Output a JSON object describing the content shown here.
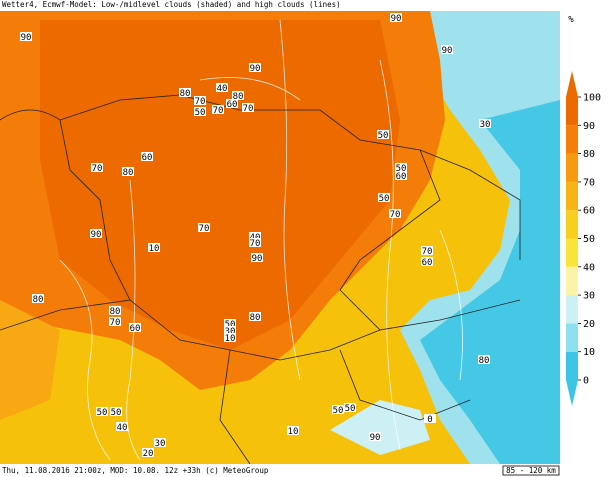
{
  "header": {
    "title": "Wetter4, Ecmwf-Model: Low-/midlevel clouds (shaded) and high clouds (lines)"
  },
  "footer": {
    "info": "Thu, 11.08.2016 21:00z, MOD: 10.08. 12z +33h (c) MeteoGroup",
    "scale": "85 - 120 km"
  },
  "colorbar": {
    "unit": "%",
    "ticks": [
      0,
      10,
      20,
      30,
      40,
      50,
      60,
      70,
      80,
      90,
      100
    ],
    "colors": [
      "#3cc4e4",
      "#8de0ee",
      "#cdf0f4",
      "#fbf3a8",
      "#f9e53a",
      "#f8cf1e",
      "#f7b515",
      "#f89a10",
      "#f47e08",
      "#ec6a00"
    ]
  },
  "contour_labels": [
    "90",
    "90",
    "90",
    "90",
    "40",
    "80",
    "70",
    "80",
    "60",
    "70",
    "50",
    "70",
    "60",
    "70",
    "80",
    "50",
    "30",
    "50",
    "60",
    "50",
    "70",
    "70",
    "90",
    "40",
    "70",
    "10",
    "90",
    "70",
    "60",
    "80",
    "80",
    "70",
    "60",
    "80",
    "50",
    "30",
    "10",
    "80",
    "50",
    "50",
    "40",
    "50",
    "50",
    "10",
    "90",
    "30",
    "20",
    "0"
  ]
}
